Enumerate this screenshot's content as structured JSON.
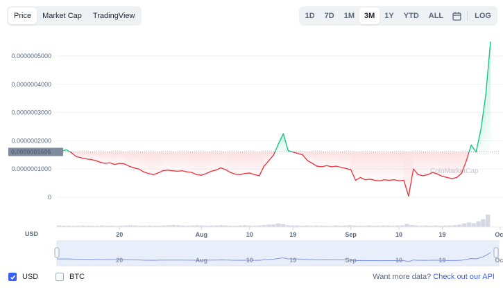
{
  "tabs": [
    {
      "label": "Price",
      "active": true
    },
    {
      "label": "Market Cap",
      "active": false
    },
    {
      "label": "TradingView",
      "active": false
    }
  ],
  "ranges": [
    {
      "label": "1D",
      "active": false
    },
    {
      "label": "7D",
      "active": false
    },
    {
      "label": "1M",
      "active": false
    },
    {
      "label": "3M",
      "active": true
    },
    {
      "label": "1Y",
      "active": false
    },
    {
      "label": "YTD",
      "active": false
    },
    {
      "label": "ALL",
      "active": false
    }
  ],
  "log_label": "LOG",
  "calendar_icon": "calendar-icon",
  "currency_axis_label": "USD",
  "watermark": "CoinMarketCap",
  "footer": {
    "usd_label": "USD",
    "usd_checked": true,
    "btc_label": "BTC",
    "btc_checked": false,
    "api_prefix": "Want more data?",
    "api_link": "Check out our API"
  },
  "colors": {
    "up": "#16c784",
    "down": "#ea3943",
    "accent": "#3861fb",
    "baseline_badge": "#808a9d"
  },
  "chart_data": {
    "type": "line",
    "y_ticks": [
      "0.0000005000",
      "0.0000004000",
      "0.0000003000",
      "0.0000002000",
      "0.0000001000",
      "0"
    ],
    "ylim": [
      0,
      5e-07
    ],
    "baseline_value": 1.606e-07,
    "baseline_label": "0.0000001606",
    "x_ticks": [
      "20",
      "Aug",
      "10",
      "19",
      "Sep",
      "10",
      "19",
      "Oct"
    ],
    "x_range_days": [
      0,
      90
    ],
    "x_tick_days": [
      13,
      30,
      40,
      49,
      61,
      71,
      80,
      92
    ],
    "series": [
      {
        "name": "",
        "points": [
          [
            0,
            1.6e-07
          ],
          [
            1,
            1.64e-07
          ],
          [
            2,
            1.68e-07
          ],
          [
            3,
            1.58e-07
          ],
          [
            4,
            1.44e-07
          ],
          [
            5,
            1.4e-07
          ],
          [
            6,
            1.36e-07
          ],
          [
            7,
            1.34e-07
          ],
          [
            8,
            1.3e-07
          ],
          [
            9,
            1.24e-07
          ],
          [
            10,
            1.2e-07
          ],
          [
            11,
            1.22e-07
          ],
          [
            12,
            1.16e-07
          ],
          [
            13,
            1.2e-07
          ],
          [
            14,
            1.18e-07
          ],
          [
            15,
            1.1e-07
          ],
          [
            16,
            1.04e-07
          ],
          [
            17,
            1e-07
          ],
          [
            18,
            9e-08
          ],
          [
            19,
            8.4e-08
          ],
          [
            20,
            8e-08
          ],
          [
            21,
            8.6e-08
          ],
          [
            22,
            9.4e-08
          ],
          [
            23,
            9.6e-08
          ],
          [
            24,
            9.4e-08
          ],
          [
            25,
            9.2e-08
          ],
          [
            26,
            9.4e-08
          ],
          [
            27,
            9e-08
          ],
          [
            28,
            8.8e-08
          ],
          [
            29,
            8e-08
          ],
          [
            30,
            7.8e-08
          ],
          [
            31,
            8.4e-08
          ],
          [
            32,
            9.2e-08
          ],
          [
            33,
            9.6e-08
          ],
          [
            34,
            1.04e-07
          ],
          [
            35,
            9.8e-08
          ],
          [
            36,
            8.8e-08
          ],
          [
            37,
            8.2e-08
          ],
          [
            38,
            8e-08
          ],
          [
            39,
            8.4e-08
          ],
          [
            40,
            8.6e-08
          ],
          [
            41,
            8e-08
          ],
          [
            42,
            7.6e-08
          ],
          [
            43,
            1.1e-07
          ],
          [
            44,
            1.3e-07
          ],
          [
            45,
            1.5e-07
          ],
          [
            46,
            1.9e-07
          ],
          [
            47,
            2.25e-07
          ],
          [
            48,
            1.65e-07
          ],
          [
            49,
            1.6e-07
          ],
          [
            50,
            1.55e-07
          ],
          [
            51,
            1.5e-07
          ],
          [
            52,
            1.3e-07
          ],
          [
            53,
            1.2e-07
          ],
          [
            54,
            1.1e-07
          ],
          [
            55,
            1.08e-07
          ],
          [
            56,
            1.12e-07
          ],
          [
            57,
            1.08e-07
          ],
          [
            58,
            1.1e-07
          ],
          [
            59,
            1.06e-07
          ],
          [
            60,
            1.02e-07
          ],
          [
            61,
            9.8e-08
          ],
          [
            62,
            6e-08
          ],
          [
            63,
            7e-08
          ],
          [
            64,
            6.2e-08
          ],
          [
            65,
            6.4e-08
          ],
          [
            66,
            6e-08
          ],
          [
            67,
            5.8e-08
          ],
          [
            68,
            6.2e-08
          ],
          [
            69,
            6e-08
          ],
          [
            70,
            6.2e-08
          ],
          [
            71,
            5.8e-08
          ],
          [
            72,
            6e-08
          ],
          [
            73,
            4e-09
          ],
          [
            74,
            1e-07
          ],
          [
            75,
            8e-08
          ],
          [
            76,
            7.6e-08
          ],
          [
            77,
            8e-08
          ],
          [
            78,
            8.8e-08
          ],
          [
            79,
            8.2e-08
          ],
          [
            80,
            7.4e-08
          ],
          [
            81,
            7e-08
          ],
          [
            82,
            6.6e-08
          ],
          [
            83,
            7e-08
          ],
          [
            84,
            8.5e-08
          ],
          [
            85,
            1.3e-07
          ],
          [
            86,
            1.85e-07
          ],
          [
            87,
            1.6e-07
          ],
          [
            88,
            2.4e-07
          ],
          [
            89,
            3.6e-07
          ],
          [
            90,
            5.5e-07
          ]
        ]
      }
    ],
    "volume": [
      6,
      5,
      5,
      4,
      5,
      6,
      5,
      5,
      4,
      6,
      5,
      5,
      4,
      5,
      6,
      7,
      6,
      5,
      5,
      6,
      5,
      5,
      6,
      7,
      8,
      7,
      6,
      5,
      6,
      7,
      6,
      5,
      6,
      6,
      7,
      6,
      5,
      5,
      6,
      7,
      6,
      5,
      6,
      8,
      9,
      10,
      14,
      11,
      7,
      6,
      6,
      5,
      6,
      5,
      6,
      5,
      5,
      4,
      6,
      5,
      6,
      7,
      6,
      5,
      5,
      6,
      5,
      5,
      6,
      6,
      5,
      6,
      7,
      12,
      8,
      6,
      5,
      6,
      5,
      6,
      5,
      6,
      6,
      7,
      9,
      14,
      18,
      15,
      22,
      30,
      48
    ]
  }
}
